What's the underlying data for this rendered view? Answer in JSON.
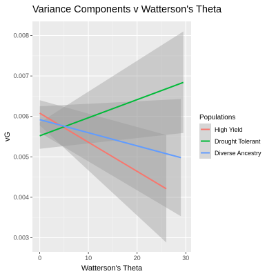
{
  "chart_data": {
    "type": "line",
    "title": "Variance Components v Watterson's Theta",
    "xlabel": "Watterson's Theta",
    "ylabel": "vG",
    "xlim": [
      -1.5,
      31.1
    ],
    "ylim": [
      0.00265,
      0.00835
    ],
    "x_ticks": [
      0,
      10,
      20,
      30
    ],
    "x_tick_labels": [
      "0",
      "10",
      "20",
      "30"
    ],
    "y_ticks": [
      0.003,
      0.004,
      0.005,
      0.006,
      0.007,
      0.008
    ],
    "y_tick_labels": [
      "0.003",
      "0.004",
      "0.005",
      "0.006",
      "0.007",
      "0.008"
    ],
    "grid": true,
    "panel_background": "#EBEBEB",
    "legend": {
      "title": "Populations",
      "placement": "right"
    },
    "series": [
      {
        "name": "High Yield",
        "color": "#F8766D",
        "x": [
          0,
          26
        ],
        "y": [
          0.00608,
          0.00421
        ],
        "band_lower": [
          0.00578,
          0.00288
        ],
        "band_upper": [
          0.0064,
          0.00554
        ]
      },
      {
        "name": "Drought Tolerant",
        "color": "#00BA38",
        "x": [
          0,
          29.5
        ],
        "y": [
          0.00552,
          0.00684
        ],
        "band_lower": [
          0.0052,
          0.00559
        ],
        "band_upper": [
          0.00585,
          0.0081
        ]
      },
      {
        "name": "Diverse Ancestry",
        "color": "#619CFF",
        "x": [
          0,
          29
        ],
        "y": [
          0.00592,
          0.00498
        ],
        "band_lower": [
          0.0056,
          0.00353
        ],
        "band_upper": [
          0.00625,
          0.00643
        ]
      }
    ]
  }
}
